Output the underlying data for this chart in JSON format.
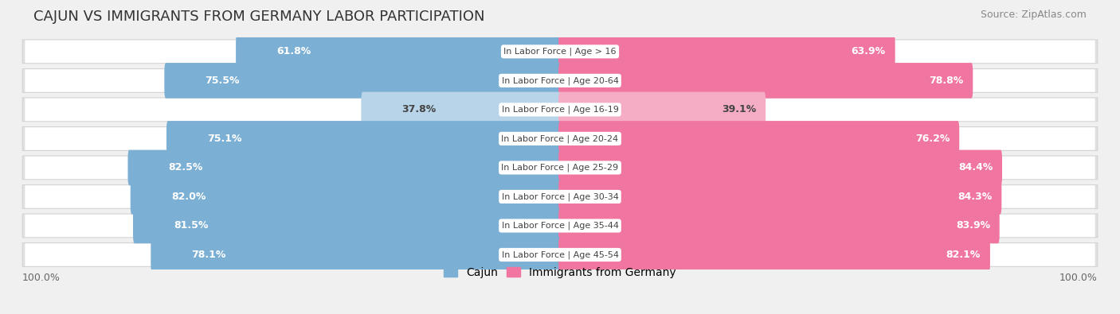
{
  "title": "CAJUN VS IMMIGRANTS FROM GERMANY LABOR PARTICIPATION",
  "source": "Source: ZipAtlas.com",
  "categories": [
    "In Labor Force | Age > 16",
    "In Labor Force | Age 20-64",
    "In Labor Force | Age 16-19",
    "In Labor Force | Age 20-24",
    "In Labor Force | Age 25-29",
    "In Labor Force | Age 30-34",
    "In Labor Force | Age 35-44",
    "In Labor Force | Age 45-54"
  ],
  "cajun_values": [
    61.8,
    75.5,
    37.8,
    75.1,
    82.5,
    82.0,
    81.5,
    78.1
  ],
  "germany_values": [
    63.9,
    78.8,
    39.1,
    76.2,
    84.4,
    84.3,
    83.9,
    82.1
  ],
  "cajun_color": "#7bafd4",
  "cajun_color_light": "#b8d4e8",
  "germany_color": "#f075a0",
  "germany_color_light": "#f5adc6",
  "bar_height": 0.62,
  "background_color": "#f0f0f0",
  "row_bg_color": "#e8e8e8",
  "label_color_white": "#ffffff",
  "label_color_dark": "#444444",
  "title_fontsize": 13,
  "source_fontsize": 9,
  "bar_label_fontsize": 9,
  "category_fontsize": 8,
  "legend_fontsize": 10,
  "axis_label_fontsize": 9,
  "light_row_indices": [
    2
  ]
}
